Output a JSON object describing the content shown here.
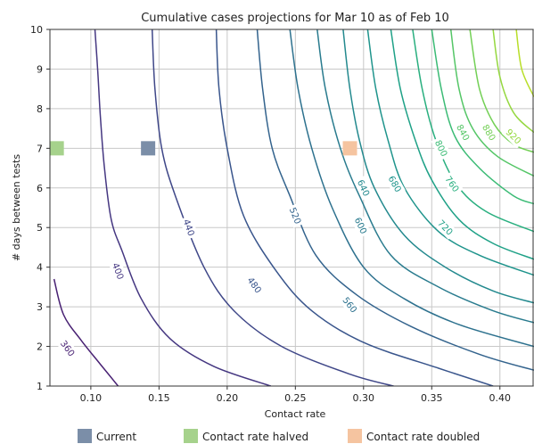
{
  "chart_data": {
    "type": "contour",
    "title": "Cumulative cases projections for Mar 10 as of Feb 10",
    "xlabel": "Contact rate",
    "ylabel": "# days between tests",
    "xlim": [
      0.07,
      0.425
    ],
    "ylim": [
      1,
      10
    ],
    "xticks": [
      "0.10",
      "0.15",
      "0.20",
      "0.25",
      "0.30",
      "0.35",
      "0.40"
    ],
    "yticks": [
      "1",
      "2",
      "3",
      "4",
      "5",
      "6",
      "7",
      "8",
      "9",
      "10"
    ],
    "grid": true,
    "contours": [
      {
        "level": 360,
        "label": "360",
        "color": "#482173",
        "label_at": [
          0.083,
          1.95
        ],
        "points": [
          [
            0.073,
            3.7
          ],
          [
            0.08,
            2.8
          ],
          [
            0.093,
            2.15
          ],
          [
            0.107,
            1.55
          ],
          [
            0.12,
            1.0
          ]
        ]
      },
      {
        "level": 400,
        "label": "400",
        "color": "#453781",
        "label_at": [
          0.12,
          3.9
        ],
        "points": [
          [
            0.103,
            10
          ],
          [
            0.105,
            9.0
          ],
          [
            0.107,
            7.8
          ],
          [
            0.11,
            6.5
          ],
          [
            0.115,
            5.2
          ],
          [
            0.123,
            4.4
          ],
          [
            0.137,
            3.2
          ],
          [
            0.158,
            2.2
          ],
          [
            0.19,
            1.5
          ],
          [
            0.232,
            1.0
          ]
        ]
      },
      {
        "level": 440,
        "label": "440",
        "color": "#3f4788",
        "label_at": [
          0.172,
          5.0
        ],
        "points": [
          [
            0.145,
            10
          ],
          [
            0.147,
            8.5
          ],
          [
            0.152,
            7.0
          ],
          [
            0.162,
            5.8
          ],
          [
            0.183,
            4.0
          ],
          [
            0.205,
            2.9
          ],
          [
            0.24,
            2.0
          ],
          [
            0.29,
            1.3
          ],
          [
            0.322,
            1.0
          ]
        ]
      },
      {
        "level": 480,
        "label": "480",
        "color": "#39558c",
        "label_at": [
          0.22,
          3.55
        ],
        "points": [
          [
            0.192,
            10
          ],
          [
            0.194,
            8.5
          ],
          [
            0.2,
            7.0
          ],
          [
            0.212,
            5.3
          ],
          [
            0.236,
            3.9
          ],
          [
            0.262,
            2.9
          ],
          [
            0.3,
            2.1
          ],
          [
            0.355,
            1.45
          ],
          [
            0.395,
            1.0
          ]
        ]
      },
      {
        "level": 520,
        "label": "520",
        "color": "#33638d",
        "label_at": [
          0.25,
          5.3
        ],
        "points": [
          [
            0.222,
            10
          ],
          [
            0.226,
            8.5
          ],
          [
            0.233,
            7.0
          ],
          [
            0.246,
            5.8
          ],
          [
            0.265,
            4.3
          ],
          [
            0.295,
            3.3
          ],
          [
            0.335,
            2.5
          ],
          [
            0.385,
            1.8
          ],
          [
            0.425,
            1.4
          ]
        ]
      },
      {
        "level": 560,
        "label": "560",
        "color": "#2d718e",
        "label_at": [
          0.29,
          3.05
        ],
        "points": [
          [
            0.246,
            10
          ],
          [
            0.252,
            8.5
          ],
          [
            0.262,
            7.0
          ],
          [
            0.277,
            5.5
          ],
          [
            0.3,
            4.0
          ],
          [
            0.33,
            3.2
          ],
          [
            0.37,
            2.55
          ],
          [
            0.425,
            2.0
          ]
        ]
      },
      {
        "level": 600,
        "label": "600",
        "color": "#297b8e",
        "label_at": [
          0.298,
          5.05
        ],
        "points": [
          [
            0.266,
            10
          ],
          [
            0.272,
            8.5
          ],
          [
            0.283,
            7.0
          ],
          [
            0.297,
            5.8
          ],
          [
            0.32,
            4.3
          ],
          [
            0.355,
            3.5
          ],
          [
            0.395,
            2.9
          ],
          [
            0.425,
            2.6
          ]
        ]
      },
      {
        "level": 640,
        "label": "640",
        "color": "#23898e",
        "label_at": [
          0.3,
          6.0
        ],
        "points": [
          [
            0.285,
            10
          ],
          [
            0.29,
            8.5
          ],
          [
            0.297,
            7.2
          ],
          [
            0.308,
            6.0
          ],
          [
            0.33,
            4.8
          ],
          [
            0.36,
            4.0
          ],
          [
            0.395,
            3.4
          ],
          [
            0.425,
            3.1
          ]
        ]
      },
      {
        "level": 680,
        "label": "680",
        "color": "#1f948c",
        "label_at": [
          0.323,
          6.1
        ],
        "points": [
          [
            0.303,
            10
          ],
          [
            0.309,
            8.5
          ],
          [
            0.318,
            7.2
          ],
          [
            0.33,
            6.0
          ],
          [
            0.355,
            4.9
          ],
          [
            0.385,
            4.3
          ],
          [
            0.425,
            3.8
          ]
        ]
      },
      {
        "level": 720,
        "label": "720",
        "color": "#1fa187",
        "label_at": [
          0.36,
          5.0
        ],
        "points": [
          [
            0.32,
            10
          ],
          [
            0.327,
            8.5
          ],
          [
            0.338,
            7.2
          ],
          [
            0.35,
            6.2
          ],
          [
            0.37,
            5.2
          ],
          [
            0.395,
            4.6
          ],
          [
            0.425,
            4.2
          ]
        ]
      },
      {
        "level": 760,
        "label": "760",
        "color": "#29af7f",
        "label_at": [
          0.365,
          6.1
        ],
        "points": [
          [
            0.336,
            10
          ],
          [
            0.343,
            8.5
          ],
          [
            0.353,
            7.2
          ],
          [
            0.368,
            6.1
          ],
          [
            0.39,
            5.4
          ],
          [
            0.425,
            4.9
          ]
        ]
      },
      {
        "level": 800,
        "label": "800",
        "color": "#3bbb75",
        "label_at": [
          0.357,
          7.0
        ],
        "points": [
          [
            0.35,
            10
          ],
          [
            0.357,
            8.5
          ],
          [
            0.367,
            7.3
          ],
          [
            0.385,
            6.5
          ],
          [
            0.41,
            5.8
          ],
          [
            0.425,
            5.6
          ]
        ]
      },
      {
        "level": 840,
        "label": "840",
        "color": "#55c667",
        "label_at": [
          0.373,
          7.4
        ],
        "points": [
          [
            0.364,
            10
          ],
          [
            0.37,
            8.5
          ],
          [
            0.38,
            7.5
          ],
          [
            0.398,
            6.8
          ],
          [
            0.425,
            6.3
          ]
        ]
      },
      {
        "level": 880,
        "label": "880",
        "color": "#73d056",
        "label_at": [
          0.392,
          7.4
        ],
        "points": [
          [
            0.378,
            10
          ],
          [
            0.385,
            8.5
          ],
          [
            0.396,
            7.6
          ],
          [
            0.41,
            7.1
          ],
          [
            0.425,
            6.9
          ]
        ]
      },
      {
        "level": 920,
        "label": "920",
        "color": "#95d840",
        "label_at": [
          0.41,
          7.3
        ],
        "points": [
          [
            0.395,
            10
          ],
          [
            0.4,
            8.8
          ],
          [
            0.41,
            7.9
          ],
          [
            0.425,
            7.4
          ]
        ]
      },
      {
        "level": 960,
        "label": "",
        "color": "#b8de29",
        "label_at": [
          0.425,
          7.4
        ],
        "points": [
          [
            0.412,
            10
          ],
          [
            0.416,
            9.0
          ],
          [
            0.425,
            8.3
          ]
        ]
      }
    ],
    "markers": [
      {
        "name": "Current",
        "x": 0.142,
        "y": 7,
        "color": "#7b8ea8"
      },
      {
        "name": "Contact rate halved",
        "x": 0.075,
        "y": 7,
        "color": "#a6d28c"
      },
      {
        "name": "Contact rate doubled",
        "x": 0.29,
        "y": 7,
        "color": "#f5c4a0"
      }
    ],
    "legend": {
      "placement": "bottom",
      "entries": [
        {
          "label": "Current",
          "color": "#7b8ea8"
        },
        {
          "label": "Contact rate halved",
          "color": "#a6d28c"
        },
        {
          "label": "Contact rate doubled",
          "color": "#f5c4a0"
        }
      ]
    }
  }
}
